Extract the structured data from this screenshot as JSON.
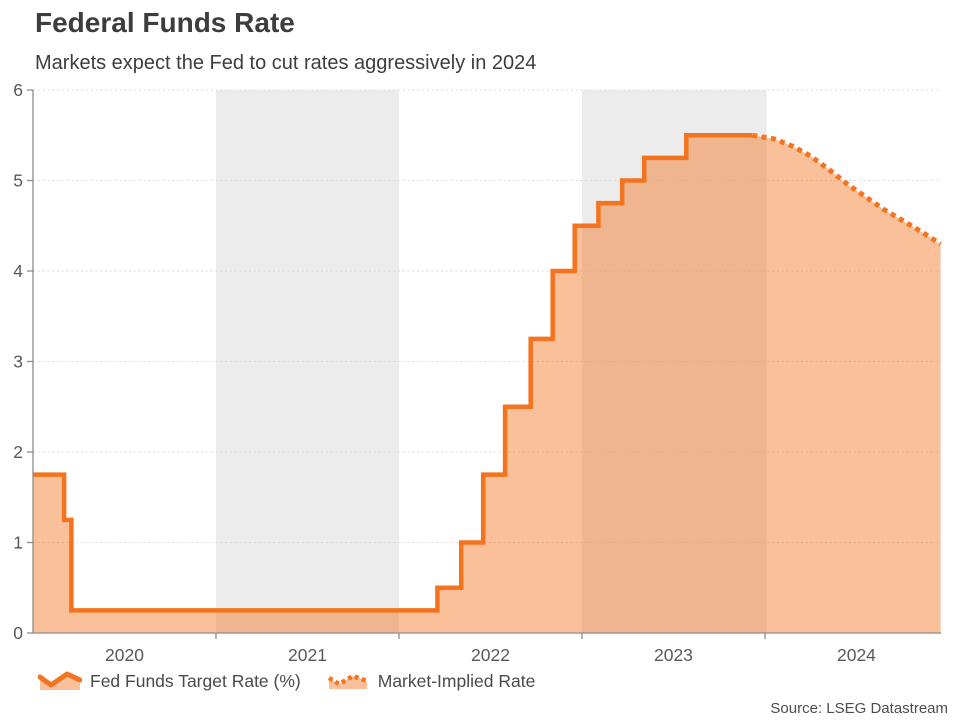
{
  "header": {
    "title": "Federal Funds Rate",
    "subtitle": "Markets expect the Fed to cut rates aggressively in 2024"
  },
  "legend": {
    "items": [
      {
        "label": "Fed Funds Target Rate (%)",
        "style": "solid"
      },
      {
        "label": "Market-Implied Rate",
        "style": "dotted"
      }
    ]
  },
  "source": "Source: LSEG Datastream",
  "colors": {
    "line": "#f4731f",
    "fill": "rgba(244,115,31,0.45)",
    "band": "#ececec",
    "grid": "#d9d9d9",
    "axis": "#8c8c8c",
    "tick_text": "#595959",
    "title_text": "#3d3d3d",
    "legend_text": "#4a4a4a",
    "source_text": "#4d4d4d"
  },
  "chart_data": {
    "type": "line",
    "title": "Federal Funds Rate",
    "subtitle": "Markets expect the Fed to cut rates aggressively in 2024",
    "xlabel": "",
    "ylabel": "",
    "xlim": [
      2020,
      2024.962
    ],
    "ylim": [
      0,
      6
    ],
    "y_ticks": [
      0,
      1,
      2,
      3,
      4,
      5,
      6
    ],
    "x_axis_boundary_ticks": [
      2021,
      2022,
      2023,
      2024
    ],
    "x_labels": [
      {
        "t": 2020.5,
        "label": "2020"
      },
      {
        "t": 2021.5,
        "label": "2021"
      },
      {
        "t": 2022.5,
        "label": "2022"
      },
      {
        "t": 2023.5,
        "label": "2023"
      },
      {
        "t": 2024.5,
        "label": "2024"
      }
    ],
    "shaded_bands": [
      [
        2021,
        2022
      ],
      [
        2023,
        2024.01
      ]
    ],
    "grid": "horizontal-dotted",
    "legend_position": "bottom-left",
    "series": [
      {
        "name": "Fed Funds Target Rate (%)",
        "type": "step-area",
        "steps": [
          [
            2020.0,
            1.75
          ],
          [
            2020.17,
            1.25
          ],
          [
            2020.21,
            0.25
          ],
          [
            2022.21,
            0.5
          ],
          [
            2022.34,
            1.0
          ],
          [
            2022.46,
            1.75
          ],
          [
            2022.58,
            2.5
          ],
          [
            2022.72,
            3.25
          ],
          [
            2022.84,
            4.0
          ],
          [
            2022.96,
            4.5
          ],
          [
            2023.09,
            4.75
          ],
          [
            2023.22,
            5.0
          ],
          [
            2023.34,
            5.25
          ],
          [
            2023.57,
            5.5
          ]
        ],
        "end_x": 2023.93
      },
      {
        "name": "Market-Implied Rate",
        "type": "dotted-line",
        "points": [
          [
            2023.93,
            5.5
          ],
          [
            2024.05,
            5.46
          ],
          [
            2024.15,
            5.38
          ],
          [
            2024.25,
            5.27
          ],
          [
            2024.35,
            5.12
          ],
          [
            2024.45,
            4.96
          ],
          [
            2024.55,
            4.82
          ],
          [
            2024.65,
            4.68
          ],
          [
            2024.75,
            4.56
          ],
          [
            2024.85,
            4.44
          ],
          [
            2024.96,
            4.3
          ]
        ]
      }
    ]
  }
}
